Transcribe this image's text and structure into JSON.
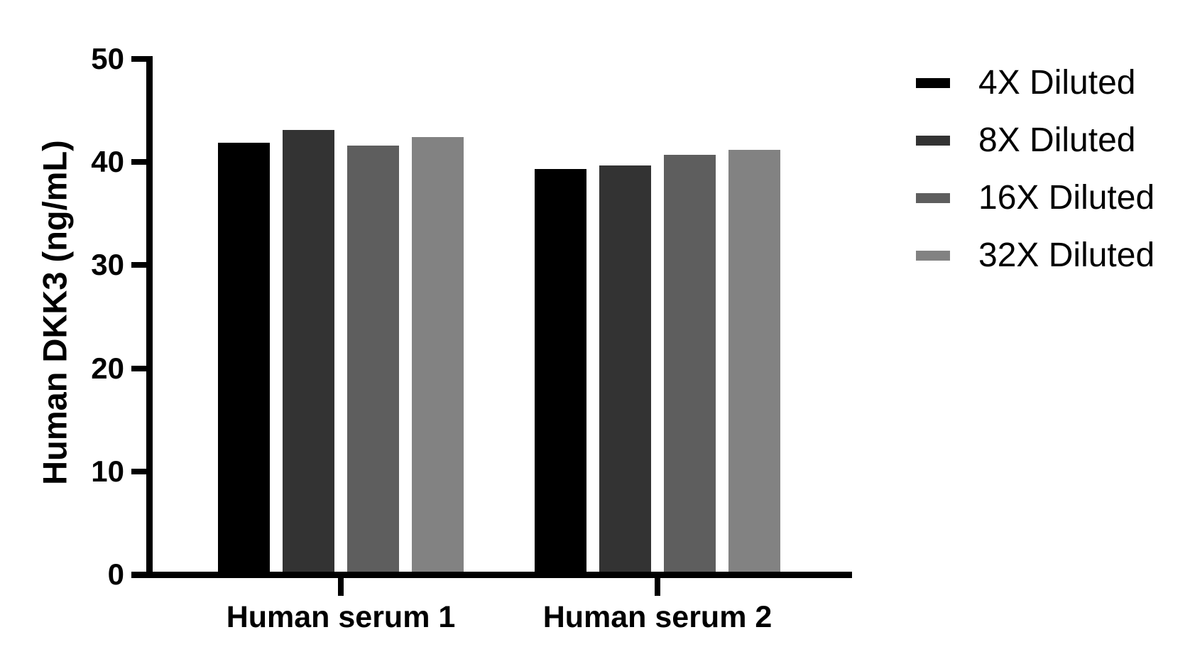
{
  "chart_data": {
    "type": "bar",
    "title": "",
    "xlabel": "",
    "ylabel": "Human DKK3 (ng/mL)",
    "ylim": [
      0,
      50
    ],
    "yticks": [
      0,
      10,
      20,
      30,
      40,
      50
    ],
    "categories": [
      "Human serum 1",
      "Human serum 2"
    ],
    "series": [
      {
        "name": "4X Diluted",
        "color": "#000000",
        "values": [
          41.9,
          39.3
        ]
      },
      {
        "name": "8X Diluted",
        "color": "#333333",
        "values": [
          43.1,
          39.7
        ]
      },
      {
        "name": "16X Diluted",
        "color": "#5e5e5e",
        "values": [
          41.6,
          40.7
        ]
      },
      {
        "name": "32X Diluted",
        "color": "#828282",
        "values": [
          42.4,
          41.2
        ]
      }
    ],
    "legend_position": "right",
    "grid": false,
    "axis_color": "#000000",
    "background_color": "#ffffff",
    "bar_orientation": "vertical"
  }
}
